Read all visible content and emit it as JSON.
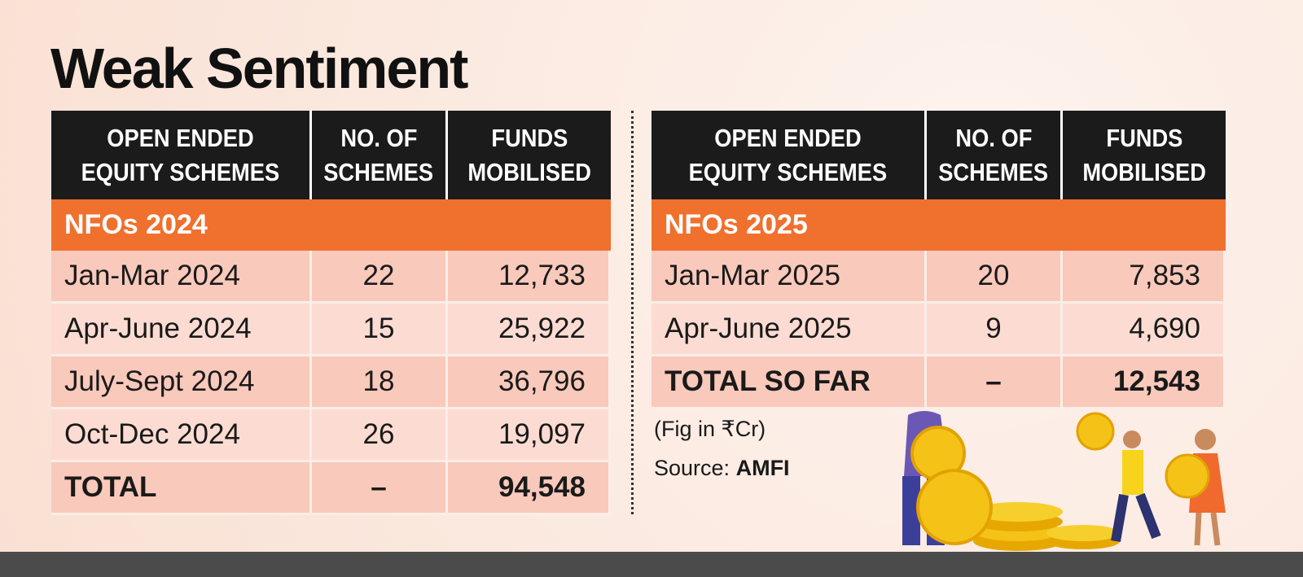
{
  "title": "Weak Sentiment",
  "tables": [
    {
      "headers": [
        [
          "OPEN ENDED",
          "EQUITY SCHEMES"
        ],
        [
          "NO. OF",
          "SCHEMES"
        ],
        [
          "FUNDS",
          "MOBILISED"
        ]
      ],
      "section": "NFOs 2024",
      "rows": [
        [
          "Jan-Mar 2024",
          "22",
          "12,733"
        ],
        [
          "Apr-June 2024",
          "15",
          "25,922"
        ],
        [
          "July-Sept 2024",
          "18",
          "36,796"
        ],
        [
          "Oct-Dec 2024",
          "26",
          "19,097"
        ]
      ],
      "total": [
        "TOTAL",
        "–",
        "94,548"
      ]
    },
    {
      "headers": [
        [
          "OPEN ENDED",
          "EQUITY SCHEMES"
        ],
        [
          "NO. OF",
          "SCHEMES"
        ],
        [
          "FUNDS",
          "MOBILISED"
        ]
      ],
      "section": "NFOs 2025",
      "rows": [
        [
          "Jan-Mar 2025",
          "20",
          "7,853"
        ],
        [
          "Apr-June 2025",
          "9",
          "4,690"
        ]
      ],
      "total": [
        "TOTAL SO FAR",
        "–",
        "12,543"
      ]
    }
  ],
  "note": "(Fig in ₹Cr)",
  "source": {
    "label": "Source:",
    "value": "AMFI"
  }
}
